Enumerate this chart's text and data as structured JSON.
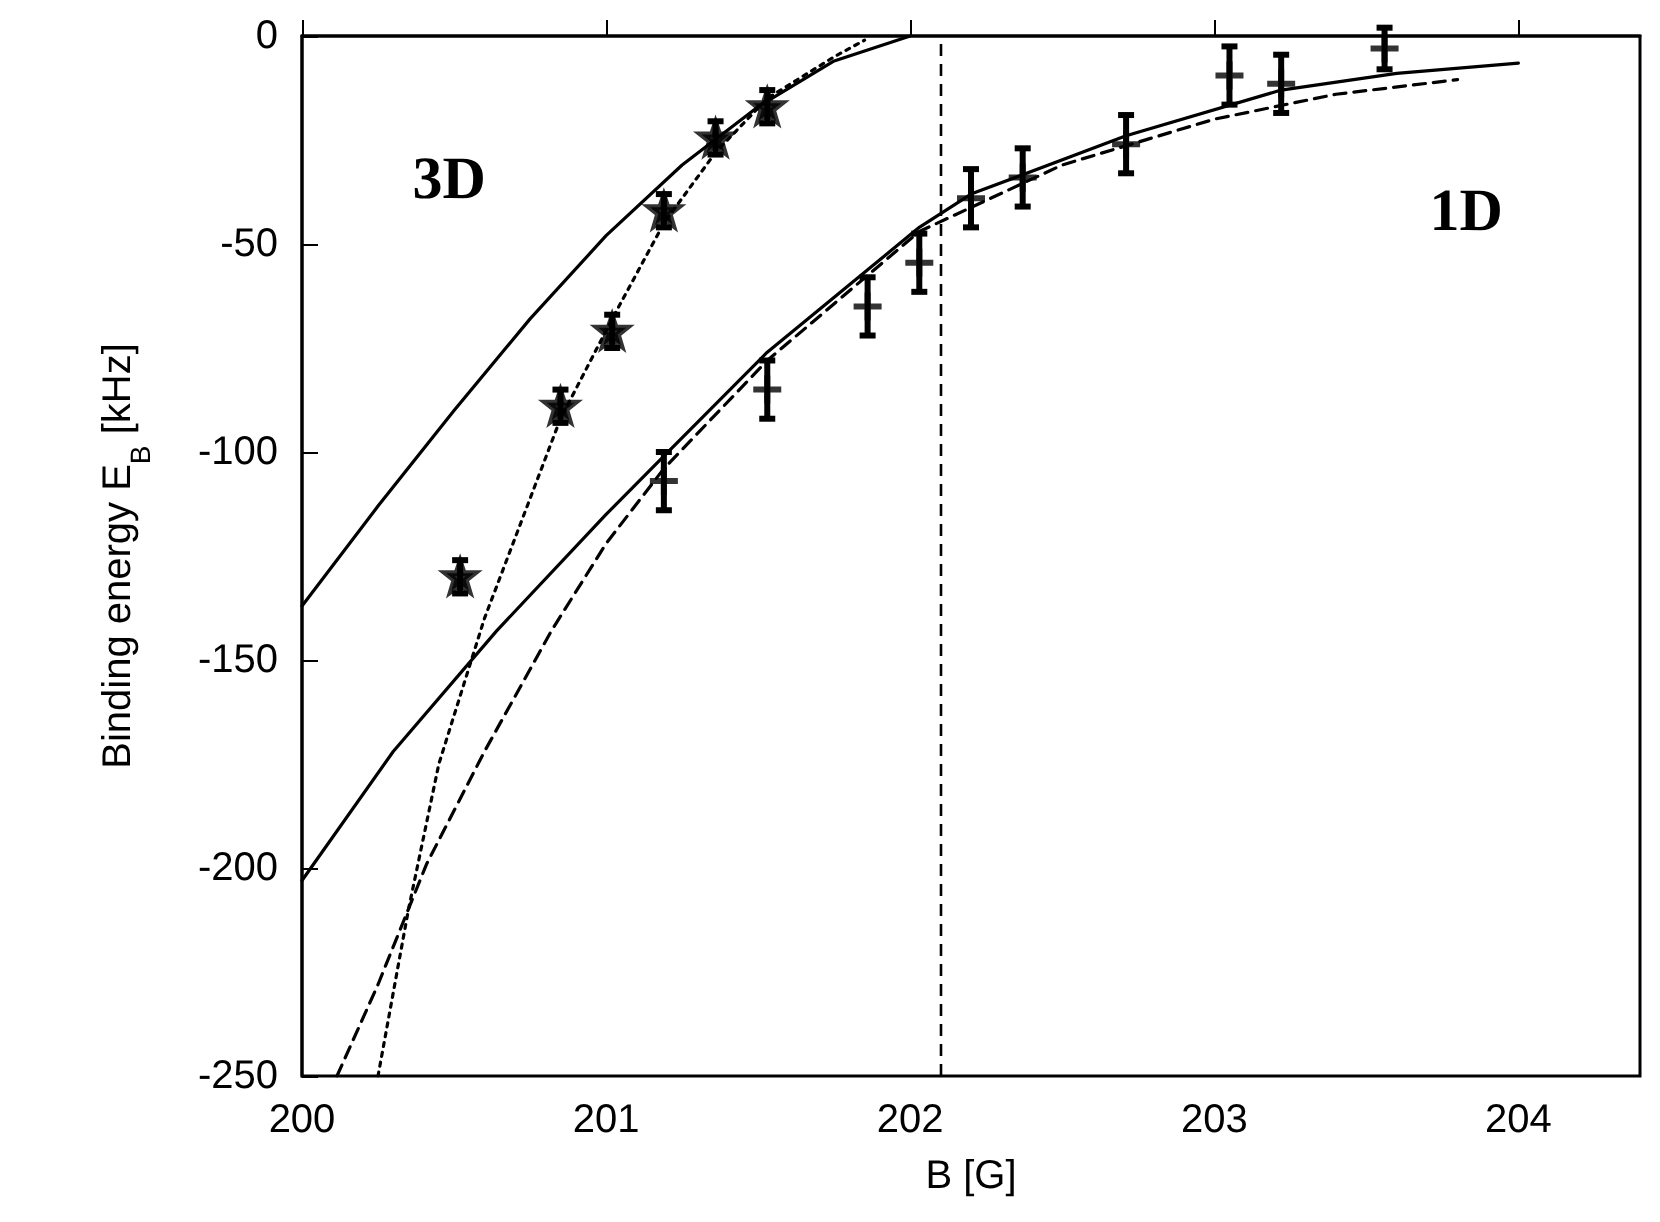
{
  "chart_data": {
    "type": "scatter",
    "xlabel": "B [G]",
    "ylabel": "Binding energy E$_{B}$ [kHz]",
    "xlim": [
      200,
      204.4
    ],
    "xticks": [
      200,
      201,
      202,
      203,
      204
    ],
    "ylim": [
      -250,
      0
    ],
    "yticks": [
      -250,
      -200,
      -150,
      -100,
      -50,
      0
    ],
    "grid": false,
    "series": [
      {
        "type": "line",
        "color": "#000000",
        "line_style": "solid",
        "marker": "none",
        "x": [
          200,
          200.25,
          200.5,
          200.75,
          201,
          201.25,
          201.5,
          201.75,
          202
        ],
        "values": [
          -137,
          -113,
          -90,
          -68,
          -48,
          -31,
          -17,
          -6,
          0
        ]
      },
      {
        "type": "line",
        "color": "#000000",
        "line_style": "dotted",
        "marker": "none",
        "x": [
          200.25,
          200.35,
          200.45,
          200.6,
          200.85,
          201.02,
          201.19,
          201.36,
          201.53,
          201.75,
          201.85
        ],
        "values": [
          -250,
          -210,
          -175,
          -140,
          -92,
          -68,
          -45,
          -28,
          -15,
          -5,
          -1
        ]
      },
      {
        "type": "line",
        "color": "#000000",
        "line_style": "solid",
        "marker": "none",
        "x": [
          200,
          200.3,
          200.64,
          201,
          201.19,
          201.53,
          202.03,
          202.2,
          202.71,
          203.22,
          203.6,
          204
        ],
        "values": [
          -203,
          -172,
          -143,
          -115,
          -101,
          -76,
          -46,
          -38,
          -24,
          -13,
          -9,
          -6.5
        ]
      },
      {
        "type": "line",
        "color": "#000000",
        "line_style": "dashed",
        "marker": "none",
        "x": [
          200.115,
          200.25,
          200.41,
          200.6,
          200.82,
          201,
          201.19,
          201.53,
          202.03,
          202.5,
          203,
          203.4,
          203.8
        ],
        "values": [
          -250,
          -228,
          -199,
          -172,
          -143,
          -122,
          -104,
          -78,
          -47,
          -31,
          -20,
          -14,
          -10.5
        ]
      },
      {
        "color": "#000000",
        "marker": "star",
        "x": [
          200.52,
          200.85,
          201.02,
          201.19,
          201.36,
          201.53
        ],
        "values": [
          -130,
          -89,
          -71,
          -42,
          -24.5,
          -17
        ],
        "errors": [
          4,
          4,
          4,
          4,
          4,
          4
        ]
      },
      {
        "color": "#000000",
        "marker": "cross",
        "x": [
          201.19,
          201.53,
          201.86,
          202.03,
          202.2,
          202.37,
          202.71,
          203.05,
          203.22,
          203.56
        ],
        "values": [
          -107,
          -85,
          -65,
          -54.5,
          -39,
          -34,
          -26,
          -9.5,
          -11.5,
          -3
        ],
        "errors": [
          7,
          7,
          7,
          7,
          7,
          7,
          7,
          7,
          7,
          5
        ]
      }
    ],
    "ref_lines": [
      {
        "axis": "x",
        "value": 202.1,
        "line_style": "dashed",
        "color": "#000000"
      }
    ],
    "annotations": [
      "3D",
      "1D"
    ]
  }
}
